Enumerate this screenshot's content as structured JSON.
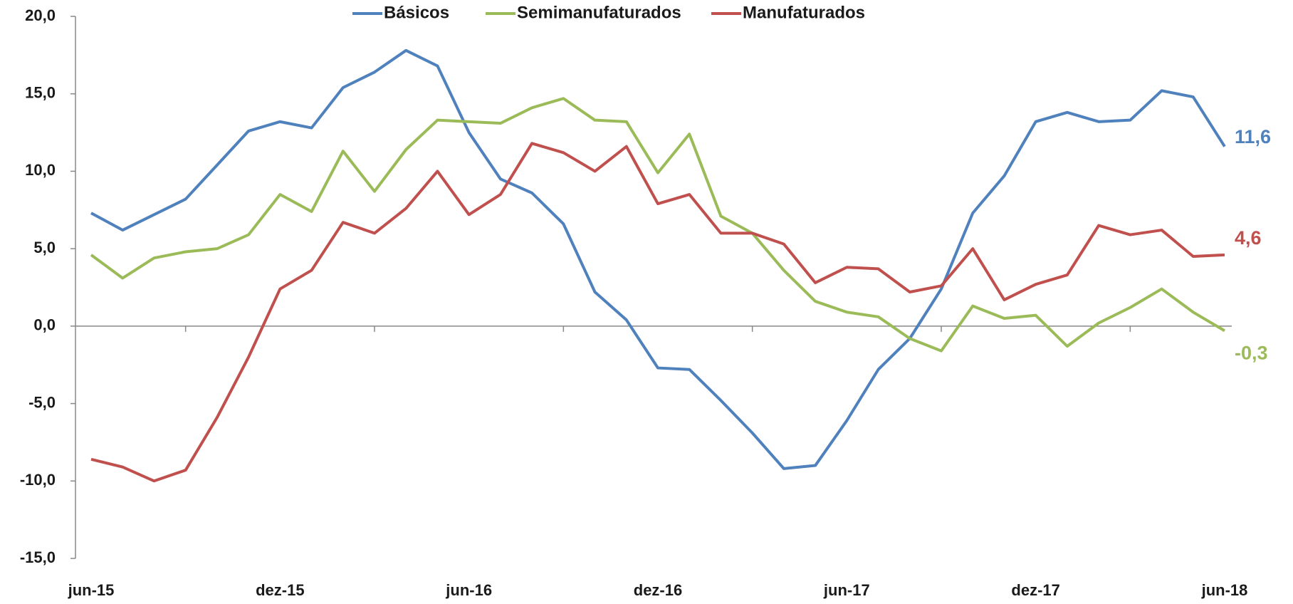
{
  "chart_data": {
    "type": "line",
    "categories": [
      "jun-15",
      null,
      null,
      null,
      null,
      null,
      "dez-15",
      null,
      null,
      null,
      null,
      null,
      "jun-16",
      null,
      null,
      null,
      null,
      null,
      "dez-16",
      null,
      null,
      null,
      null,
      null,
      "jun-17",
      null,
      null,
      null,
      null,
      null,
      "dez-17",
      null,
      null,
      null,
      null,
      null,
      "jun-18"
    ],
    "series": [
      {
        "name": "Básicos",
        "color": "#4f81bd",
        "values": [
          7.3,
          6.2,
          7.2,
          8.2,
          10.4,
          12.6,
          13.2,
          12.8,
          15.4,
          16.4,
          17.8,
          16.8,
          12.5,
          9.5,
          8.6,
          6.6,
          2.2,
          0.4,
          -2.7,
          -2.8,
          -4.8,
          -6.9,
          -9.2,
          -9.0,
          -6.1,
          -2.8,
          -0.8,
          2.4,
          7.3,
          9.7,
          13.2,
          13.8,
          13.2,
          13.3,
          15.2,
          14.8,
          11.6
        ],
        "value_labels": [
          null,
          null,
          null,
          null,
          null,
          null,
          null,
          null,
          null,
          null,
          null,
          null,
          null,
          null,
          null,
          null,
          null,
          null,
          null,
          null,
          null,
          null,
          null,
          null,
          null,
          null,
          null,
          null,
          null,
          null,
          null,
          null,
          null,
          null,
          null,
          null,
          "11,6"
        ]
      },
      {
        "name": "Semimanufaturados",
        "color": "#9bbb59",
        "values": [
          4.6,
          3.1,
          4.4,
          4.8,
          5.0,
          5.9,
          8.5,
          7.4,
          11.3,
          8.7,
          11.4,
          13.3,
          13.2,
          13.1,
          14.1,
          14.7,
          13.3,
          13.2,
          9.9,
          12.4,
          7.1,
          6.0,
          3.6,
          1.6,
          0.9,
          0.6,
          -0.8,
          -1.6,
          1.3,
          0.5,
          0.7,
          -1.3,
          0.2,
          1.2,
          2.4,
          0.9,
          -0.3
        ],
        "value_labels": [
          null,
          null,
          null,
          null,
          null,
          null,
          null,
          null,
          null,
          null,
          null,
          null,
          null,
          null,
          null,
          null,
          null,
          null,
          null,
          null,
          null,
          null,
          null,
          null,
          null,
          null,
          null,
          null,
          null,
          null,
          null,
          null,
          null,
          null,
          null,
          null,
          "-0,3"
        ]
      },
      {
        "name": "Manufaturados",
        "color": "#c0504d",
        "values": [
          -8.6,
          -9.1,
          -10.0,
          -9.3,
          -5.9,
          -2.0,
          2.4,
          3.6,
          6.7,
          6.0,
          7.6,
          10.0,
          7.2,
          8.5,
          11.8,
          11.2,
          10.0,
          11.6,
          7.9,
          8.5,
          6.0,
          6.0,
          5.3,
          2.8,
          3.8,
          3.7,
          2.2,
          2.6,
          5.0,
          1.7,
          2.7,
          3.3,
          6.5,
          5.9,
          6.2,
          4.5,
          4.6
        ],
        "value_labels": [
          null,
          null,
          null,
          null,
          null,
          null,
          null,
          null,
          null,
          null,
          null,
          null,
          null,
          null,
          null,
          null,
          null,
          null,
          null,
          null,
          null,
          null,
          null,
          null,
          null,
          null,
          null,
          null,
          null,
          null,
          null,
          null,
          null,
          null,
          null,
          null,
          "4,6"
        ]
      }
    ],
    "ylim": [
      -15,
      20
    ],
    "yticks": [
      {
        "value": -15,
        "label": "-15,0"
      },
      {
        "value": -10,
        "label": "-10,0"
      },
      {
        "value": -5,
        "label": "-5,0"
      },
      {
        "value": 0,
        "label": "0,0"
      },
      {
        "value": 5,
        "label": "5,0"
      },
      {
        "value": 10,
        "label": "10,0"
      },
      {
        "value": 15,
        "label": "15,0"
      },
      {
        "value": 20,
        "label": "20,0"
      }
    ],
    "legend": "top"
  }
}
